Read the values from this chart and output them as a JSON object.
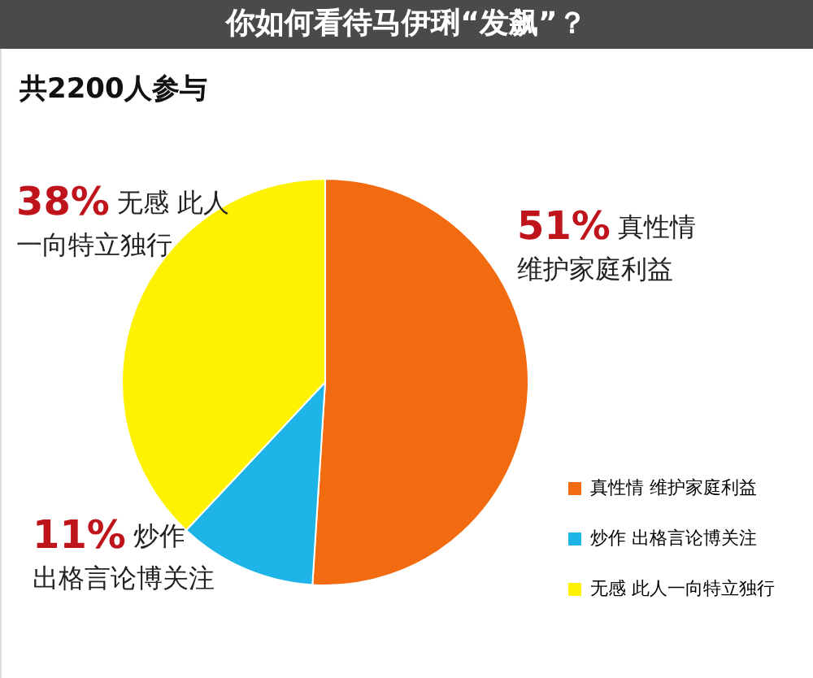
{
  "chart_data": {
    "type": "pie",
    "title": "你如何看待马伊琍“发飙”？",
    "subtitle": "共2200人参与",
    "categories": [
      "真性情 维护家庭利益",
      "炒作 出格言论博关注",
      "无感 此人一向特立独行"
    ],
    "values": [
      51,
      11,
      38
    ],
    "colors": [
      "#f26b10",
      "#1eb4e8",
      "#fff200"
    ],
    "value_labels": [
      "51%",
      "11%",
      "38%"
    ],
    "annotations": [
      "真性情",
      "维护家庭利益",
      "炒作",
      "出格言论博关注",
      "无感 此人",
      "一向特立独行"
    ],
    "legend": "bottom right"
  }
}
